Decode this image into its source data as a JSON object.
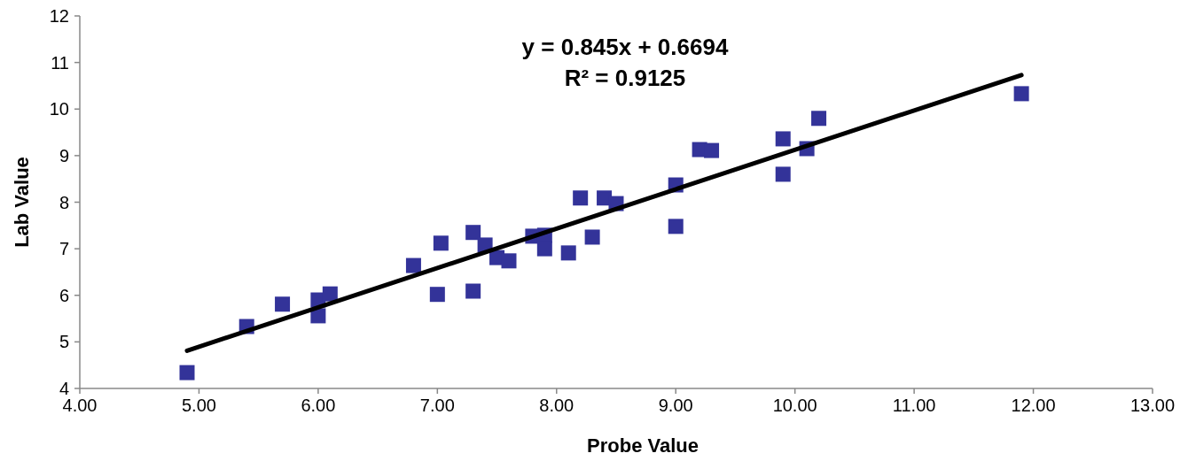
{
  "chart_data": {
    "type": "scatter",
    "xlabel": "Probe Value",
    "ylabel": "Lab Value",
    "xlim": [
      4,
      13
    ],
    "xticks": [
      {
        "value": 4,
        "label": "4.00"
      },
      {
        "value": 5,
        "label": "5.00"
      },
      {
        "value": 6,
        "label": "6.00"
      },
      {
        "value": 7,
        "label": "7.00"
      },
      {
        "value": 8,
        "label": "8.00"
      },
      {
        "value": 9,
        "label": "9.00"
      },
      {
        "value": 10,
        "label": "10.00"
      },
      {
        "value": 11,
        "label": "11.00"
      },
      {
        "value": 12,
        "label": "12.00"
      },
      {
        "value": 13,
        "label": "13.00"
      }
    ],
    "ylim": [
      4,
      12
    ],
    "yticks": [
      4,
      5,
      6,
      7,
      8,
      9,
      10,
      11,
      12
    ],
    "annotations": [
      "y = 0.845x + 0.6694",
      "R² = 0.9125"
    ],
    "series": [
      {
        "marker": "square",
        "color": "#333399",
        "x": [
          4.9,
          5.4,
          5.7,
          6.0,
          6.0,
          6.1,
          6.8,
          7.0,
          7.03,
          7.3,
          7.3,
          7.4,
          7.5,
          7.6,
          7.8,
          7.9,
          7.9,
          8.1,
          8.2,
          8.3,
          8.4,
          8.5,
          9.0,
          9.0,
          9.2,
          9.3,
          9.9,
          9.9,
          10.1,
          10.2,
          11.9
        ],
        "values": [
          4.34,
          5.33,
          5.81,
          5.9,
          5.56,
          6.03,
          6.64,
          6.02,
          7.12,
          7.35,
          6.09,
          7.08,
          6.81,
          6.74,
          7.27,
          7.29,
          7.0,
          6.91,
          8.09,
          7.25,
          8.09,
          7.97,
          8.37,
          7.48,
          9.13,
          9.11,
          9.36,
          8.6,
          9.15,
          9.8,
          10.33
        ]
      },
      {
        "type": "line",
        "color": "#000000",
        "x": [
          4.9,
          11.9
        ],
        "values": [
          4.81,
          10.73
        ]
      }
    ]
  }
}
